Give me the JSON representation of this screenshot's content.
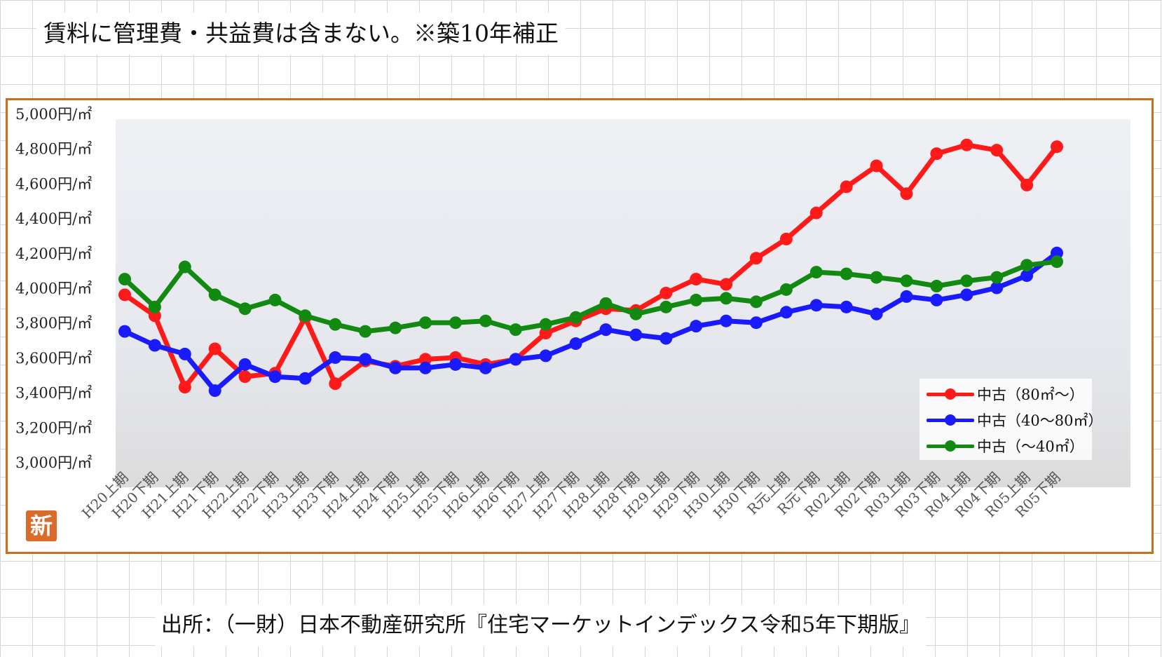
{
  "note": "賃料に管理費・共益費は含まない。※築10年補正",
  "source": "出所：（一財）日本不動産研究所『住宅マーケットインデックス令和5年下期版』",
  "stamp": "新",
  "colors": {
    "frame": "#c6701c",
    "red": "#ff1a1a",
    "blue": "#1a1aff",
    "green": "#128a12",
    "stamp": "#d96b2b"
  },
  "chart_data": {
    "type": "line",
    "title": "",
    "xlabel": "",
    "ylabel": "",
    "ylim": [
      3000,
      5000
    ],
    "yticks": [
      3000,
      3200,
      3400,
      3600,
      3800,
      4000,
      4200,
      4400,
      4600,
      4800,
      5000
    ],
    "ytick_labels": [
      "3,000円/㎡",
      "3,200円/㎡",
      "3,400円/㎡",
      "3,600円/㎡",
      "3,800円/㎡",
      "4,000円/㎡",
      "4,200円/㎡",
      "4,400円/㎡",
      "4,600円/㎡",
      "4,800円/㎡",
      "5,000円/㎡"
    ],
    "legend_position": "bottom-right",
    "grid": false,
    "categories": [
      "H20上期",
      "H20下期",
      "H21上期",
      "H21下期",
      "H22上期",
      "H22下期",
      "H23上期",
      "H23下期",
      "H24上期",
      "H24下期",
      "H25上期",
      "H25下期",
      "H26上期",
      "H26下期",
      "H27上期",
      "H27下期",
      "H28上期",
      "H28下期",
      "H29上期",
      "H29下期",
      "H30上期",
      "H30下期",
      "R元上期",
      "R元下期",
      "R02上期",
      "R02下期",
      "R03上期",
      "R03下期",
      "R04上期",
      "R04下期",
      "R05上期",
      "R05下期"
    ],
    "series": [
      {
        "name": "中古（80㎡～）",
        "color": "#ff1a1a",
        "values": [
          3960,
          3840,
          3430,
          3650,
          3490,
          3510,
          3830,
          3450,
          3580,
          3550,
          3590,
          3600,
          3560,
          3590,
          3740,
          3810,
          3880,
          3870,
          3970,
          4050,
          4020,
          4170,
          4280,
          4430,
          4580,
          4700,
          4540,
          4770,
          4820,
          4790,
          4590,
          4810
        ]
      },
      {
        "name": "中古（40～80㎡）",
        "color": "#1a1aff",
        "values": [
          3750,
          3670,
          3620,
          3410,
          3560,
          3490,
          3480,
          3600,
          3590,
          3540,
          3540,
          3560,
          3540,
          3590,
          3610,
          3680,
          3760,
          3730,
          3710,
          3780,
          3810,
          3800,
          3860,
          3900,
          3890,
          3850,
          3950,
          3930,
          3960,
          4000,
          4070,
          4200
        ]
      },
      {
        "name": "中古（～40㎡）",
        "color": "#128a12",
        "values": [
          4050,
          3890,
          4120,
          3960,
          3880,
          3930,
          3840,
          3790,
          3750,
          3770,
          3800,
          3800,
          3810,
          3760,
          3790,
          3830,
          3910,
          3850,
          3890,
          3930,
          3940,
          3920,
          3990,
          4090,
          4080,
          4060,
          4040,
          4010,
          4040,
          4060,
          4130,
          4150
        ]
      }
    ]
  }
}
